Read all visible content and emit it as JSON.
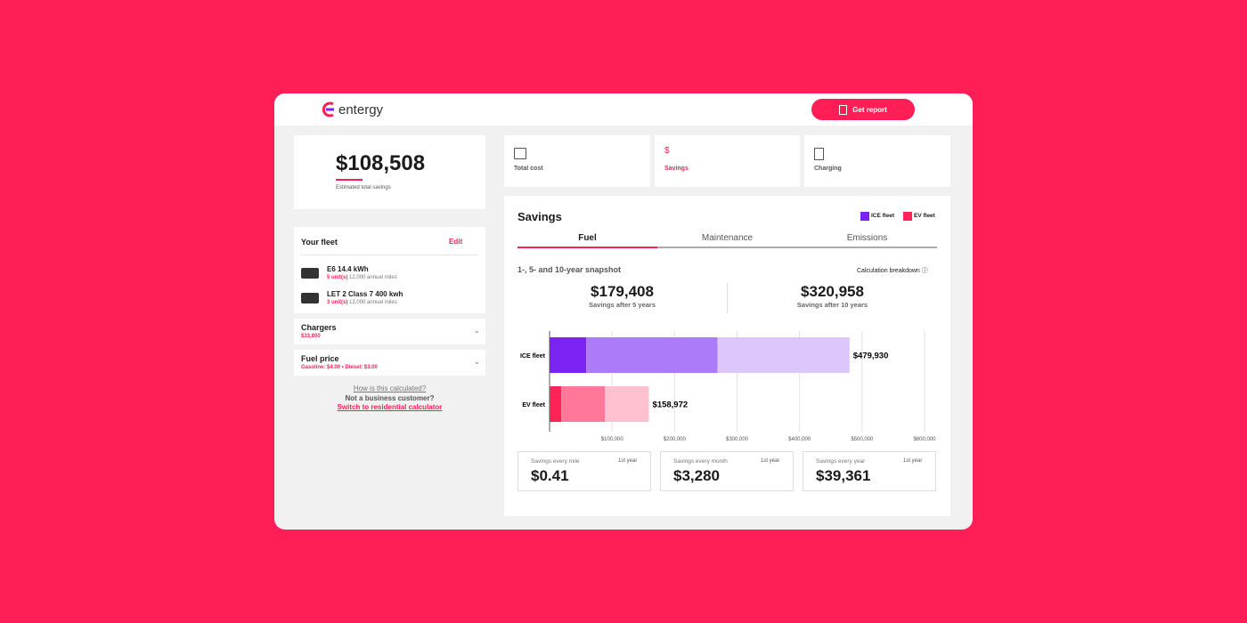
{
  "header": {
    "logo": "entergy",
    "button": "Get report"
  },
  "summary": {
    "amount": "$108,508",
    "caption": "Estimated total savings"
  },
  "fleet": {
    "title": "Your fleet",
    "edit": "Edit",
    "vehicles": [
      {
        "name": "E6 14.4 kWh",
        "units": "5 unit(s)",
        "miles": "12,000 annual miles"
      },
      {
        "name": "LET 2 Class 7 400 kwh",
        "units": "3 unit(s)",
        "miles": "12,000 annual miles"
      }
    ]
  },
  "chargers": {
    "title": "Chargers",
    "value": "$33,800"
  },
  "fuel": {
    "title": "Fuel price",
    "value": "Gasoline: $4.00 • Diesel: $3.00"
  },
  "links": {
    "how": "How is this calculated?",
    "not_business": "Not a business customer?",
    "switch": "Switch to residential calculator"
  },
  "top_tabs": [
    "Total cost",
    "Savings",
    "Charging"
  ],
  "savings": {
    "title": "Savings",
    "tabs": [
      "Fuel",
      "Maintenance",
      "Emissions"
    ],
    "subtitle": "1-, 5- and 10-year snapshot",
    "breakdown": "Calculation breakdown",
    "snapshots": [
      {
        "value": "$179,408",
        "label": "Savings after 5 years"
      },
      {
        "value": "$320,958",
        "label": "Savings after 10 years"
      }
    ]
  },
  "chart_data": {
    "type": "stacked-horizontal-bar",
    "bars": [
      {
        "name": "ICE fleet",
        "color": "#7b22f5",
        "segment_colors": [
          "#7b22f5",
          "#ab7bf9",
          "#dcc6fc"
        ],
        "values": [
          58600,
          210000,
          211330
        ],
        "total": 479930,
        "total_label": "$479,930"
      },
      {
        "name": "EV fleet",
        "color": "#ff2357",
        "segment_colors": [
          "#ff2357",
          "#ff7899",
          "#ffc1d0"
        ],
        "values": [
          18600,
          70000,
          70372
        ],
        "total": 158972,
        "total_label": "$158,972"
      }
    ],
    "xlim": [
      0,
      600000
    ],
    "xticks": [
      {
        "value": 100000,
        "label": "$100,000"
      },
      {
        "value": 200000,
        "label": "$200,000"
      },
      {
        "value": 300000,
        "label": "$300,000"
      },
      {
        "value": 400000,
        "label": "$400,000"
      },
      {
        "value": 500000,
        "label": "$500,000"
      },
      {
        "value": 600000,
        "label": "$600,000"
      }
    ],
    "grid": true
  },
  "stats": [
    {
      "label": "Savings every mile",
      "period": "1st year",
      "value": "$0.41"
    },
    {
      "label": "Savings every month",
      "period": "1st year",
      "value": "$3,280"
    },
    {
      "label": "Savings every year",
      "period": "1st year",
      "value": "$39,361"
    }
  ]
}
